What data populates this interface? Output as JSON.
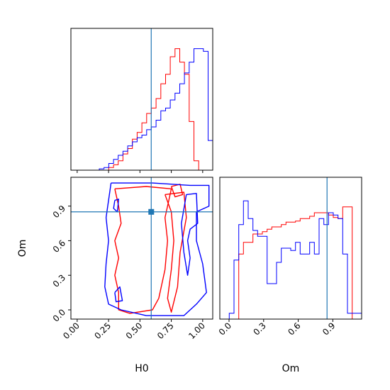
{
  "figure": {
    "params": [
      "H0",
      "Om"
    ],
    "truths": {
      "H0": 0.59,
      "Om": 0.85
    },
    "colors": {
      "red": "#ff0000",
      "blue": "#0000ff",
      "truth": "#1f77b4",
      "axes": "#000000"
    }
  },
  "chart_data": [
    {
      "type": "histogram",
      "panel": "H0 marginal",
      "xlabel": "",
      "ylabel": "",
      "xlim": [
        -0.05,
        1.08
      ],
      "show_x_ticklabels": false,
      "x_ticks": [
        0.0,
        0.25,
        0.5,
        0.75,
        1.0
      ],
      "ylim": [
        0,
        1.05
      ],
      "truth": 0.59,
      "bin_start": -0.05,
      "bin_width": 0.0377,
      "series": [
        {
          "color": "red",
          "values": [
            0,
            0,
            0,
            0,
            0,
            0,
            0,
            0,
            0.02,
            0.04,
            0.07,
            0.12,
            0.16,
            0.23,
            0.28,
            0.35,
            0.42,
            0.46,
            0.53,
            0.64,
            0.71,
            0.84,
            0.9,
            0.8,
            0.71,
            0.36,
            0.07,
            0,
            0,
            0
          ]
        },
        {
          "color": "blue",
          "values": [
            0,
            0,
            0,
            0,
            0,
            0,
            0.01,
            0.02,
            0.05,
            0.08,
            0.11,
            0.14,
            0.18,
            0.21,
            0.24,
            0.26,
            0.3,
            0.32,
            0.37,
            0.44,
            0.46,
            0.52,
            0.57,
            0.64,
            0.72,
            0.8,
            0.9,
            0.9,
            0.88,
            0.22
          ]
        }
      ]
    },
    {
      "type": "contour",
      "panel": "H0 vs Om 2D",
      "xlabel": "H0",
      "ylabel": "Om",
      "xlim": [
        -0.05,
        1.08
      ],
      "ylim": [
        -0.08,
        1.15
      ],
      "x_ticklabels": [
        "0.00",
        "0.25",
        "0.50",
        "0.75",
        "1.00"
      ],
      "x_ticks": [
        0.0,
        0.25,
        0.5,
        0.75,
        1.0
      ],
      "y_ticklabels": [
        "0.0",
        "0.3",
        "0.6",
        "0.9"
      ],
      "y_ticks": [
        0.0,
        0.3,
        0.6,
        0.9
      ],
      "truth": {
        "x": 0.59,
        "y": 0.85
      },
      "series": [
        {
          "color": "red",
          "contours": [
            [
              [
                0.3,
                1.05
              ],
              [
                0.55,
                1.07
              ],
              [
                0.75,
                1.05
              ],
              [
                0.73,
                0.95
              ],
              [
                0.7,
                0.8
              ],
              [
                0.72,
                0.6
              ],
              [
                0.7,
                0.35
              ],
              [
                0.65,
                0.1
              ],
              [
                0.6,
                0.0
              ],
              [
                0.42,
                -0.03
              ],
              [
                0.33,
                0.0
              ],
              [
                0.33,
                0.15
              ],
              [
                0.3,
                0.3
              ],
              [
                0.33,
                0.45
              ],
              [
                0.3,
                0.6
              ],
              [
                0.35,
                0.75
              ],
              [
                0.33,
                0.9
              ],
              [
                0.3,
                1.05
              ]
            ],
            [
              [
                0.7,
                1.0
              ],
              [
                0.85,
                1.02
              ],
              [
                0.87,
                0.8
              ],
              [
                0.82,
                0.5
              ],
              [
                0.8,
                0.2
              ],
              [
                0.75,
                -0.02
              ],
              [
                0.72,
                0.1
              ],
              [
                0.75,
                0.35
              ],
              [
                0.77,
                0.6
              ],
              [
                0.75,
                0.85
              ],
              [
                0.7,
                1.0
              ]
            ],
            [
              [
                0.75,
                1.07
              ],
              [
                0.82,
                1.09
              ],
              [
                0.84,
                1.0
              ],
              [
                0.78,
                0.98
              ],
              [
                0.75,
                1.07
              ]
            ]
          ]
        },
        {
          "color": "blue",
          "contours": [
            [
              [
                0.27,
                1.1
              ],
              [
                0.6,
                1.1
              ],
              [
                0.9,
                1.08
              ],
              [
                1.05,
                1.08
              ],
              [
                1.05,
                0.9
              ],
              [
                0.95,
                0.85
              ],
              [
                0.95,
                0.6
              ],
              [
                1.0,
                0.4
              ],
              [
                1.03,
                0.15
              ],
              [
                0.95,
                0.05
              ],
              [
                0.85,
                -0.05
              ],
              [
                0.55,
                -0.05
              ],
              [
                0.35,
                0.0
              ],
              [
                0.25,
                0.05
              ],
              [
                0.22,
                0.2
              ],
              [
                0.23,
                0.4
              ],
              [
                0.25,
                0.6
              ],
              [
                0.23,
                0.8
              ],
              [
                0.25,
                0.95
              ],
              [
                0.27,
                1.1
              ]
            ],
            [
              [
                0.87,
                1.0
              ],
              [
                0.95,
                1.01
              ],
              [
                0.96,
                0.75
              ],
              [
                0.9,
                0.7
              ],
              [
                0.88,
                0.6
              ],
              [
                0.9,
                0.45
              ],
              [
                0.88,
                0.3
              ],
              [
                0.85,
                0.5
              ],
              [
                0.83,
                0.75
              ],
              [
                0.87,
                1.0
              ]
            ],
            [
              [
                0.3,
                0.95
              ],
              [
                0.33,
                0.96
              ],
              [
                0.32,
                0.85
              ],
              [
                0.29,
                0.88
              ],
              [
                0.3,
                0.95
              ]
            ],
            [
              [
                0.3,
                0.15
              ],
              [
                0.34,
                0.2
              ],
              [
                0.36,
                0.08
              ],
              [
                0.31,
                0.07
              ],
              [
                0.3,
                0.15
              ]
            ]
          ]
        }
      ]
    },
    {
      "type": "histogram",
      "panel": "Om marginal",
      "xlabel": "Om",
      "ylabel": "",
      "xlim": [
        -0.08,
        1.15
      ],
      "x_ticklabels": [
        "0.0",
        "0.3",
        "0.6",
        "0.9"
      ],
      "x_ticks": [
        0.0,
        0.3,
        0.6,
        0.9
      ],
      "ylim": [
        0,
        1.2
      ],
      "truth": 0.85,
      "bin_start": -0.08,
      "bin_width": 0.041,
      "series": [
        {
          "color": "red",
          "values": [
            0,
            0,
            0,
            0,
            0.55,
            0.65,
            0.65,
            0.72,
            0.72,
            0.74,
            0.76,
            0.78,
            0.78,
            0.8,
            0.82,
            0.82,
            0.83,
            0.85,
            0.85,
            0.87,
            0.9,
            0.9,
            0.9,
            0.88,
            0.86,
            0.85,
            0.95,
            0.95,
            0,
            0
          ]
        },
        {
          "color": "blue",
          "values": [
            0,
            0,
            0.05,
            0.5,
            0.8,
            1.0,
            0.85,
            0.75,
            0.7,
            0.7,
            0.3,
            0.3,
            0.48,
            0.6,
            0.6,
            0.58,
            0.65,
            0.55,
            0.55,
            0.65,
            0.55,
            0.85,
            0.8,
            0.9,
            0.88,
            0.85,
            0.55,
            0.05,
            0.05,
            0.05
          ]
        }
      ]
    }
  ]
}
